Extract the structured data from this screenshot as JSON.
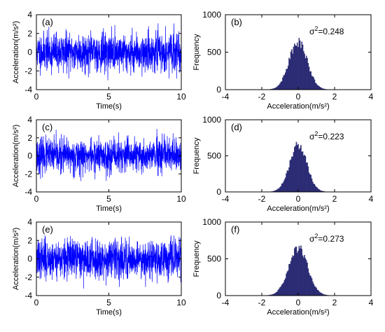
{
  "figure": {
    "background": "#ffffff",
    "signal_color": "#0000ff",
    "histogram_color": "#2b2b7a"
  },
  "chart_data": [
    {
      "panel": "(a)",
      "type": "line",
      "description_style": "dense random vibration signal",
      "xlabel": "Time(s)",
      "ylabel": "Acceleration(m/s²)",
      "xlim": [
        0,
        10
      ],
      "ylim": [
        -4,
        4
      ],
      "xticks": [
        "0",
        "5",
        "10"
      ],
      "yticks": [
        "-4",
        "-2",
        "0",
        "2",
        "4"
      ],
      "sample_count": 1200,
      "sigma": 0.498,
      "seed": 11
    },
    {
      "panel": "(b)",
      "type": "bar",
      "xlabel": "Acceleration(m/s²)",
      "ylabel": "Frequency",
      "xlim": [
        -4,
        4
      ],
      "ylim": [
        0,
        1000
      ],
      "xticks": [
        "-4",
        "-2",
        "0",
        "2",
        "4"
      ],
      "yticks": [
        "0",
        "500",
        "1000"
      ],
      "annotation_prefix": "σ",
      "annotation_exp": "2",
      "annotation_value": "=0.248",
      "variance": 0.248,
      "peak_frequency": 640,
      "bin_width": 0.05
    },
    {
      "panel": "(c)",
      "type": "line",
      "xlabel": "Time(s)",
      "ylabel": "Acceleration(m/s²)",
      "xlim": [
        0,
        10
      ],
      "ylim": [
        -4,
        4
      ],
      "xticks": [
        "0",
        "5",
        "10"
      ],
      "yticks": [
        "-4",
        "-2",
        "0",
        "2",
        "4"
      ],
      "sample_count": 1200,
      "sigma": 0.472,
      "seed": 23
    },
    {
      "panel": "(d)",
      "type": "bar",
      "xlabel": "Acceleration(m/s²)",
      "ylabel": "Frequency",
      "xlim": [
        -4,
        4
      ],
      "ylim": [
        0,
        1000
      ],
      "xticks": [
        "-4",
        "-2",
        "0",
        "2",
        "4"
      ],
      "yticks": [
        "0",
        "500",
        "1000"
      ],
      "annotation_prefix": "σ",
      "annotation_exp": "2",
      "annotation_value": "=0.223",
      "variance": 0.223,
      "peak_frequency": 650,
      "bin_width": 0.05
    },
    {
      "panel": "(e)",
      "type": "line",
      "xlabel": "Time(s)",
      "ylabel": "Acceleration(m/s²)",
      "xlim": [
        0,
        10
      ],
      "ylim": [
        -4,
        4
      ],
      "xticks": [
        "0",
        "5",
        "10"
      ],
      "yticks": [
        "-4",
        "-2",
        "0",
        "2",
        "4"
      ],
      "sample_count": 1200,
      "sigma": 0.522,
      "seed": 37
    },
    {
      "panel": "(f)",
      "type": "bar",
      "xlabel": "Acceleration(m/s²)",
      "ylabel": "Frequency",
      "xlim": [
        -4,
        4
      ],
      "ylim": [
        0,
        1000
      ],
      "xticks": [
        "-4",
        "-2",
        "0",
        "2",
        "4"
      ],
      "yticks": [
        "0",
        "500",
        "1000"
      ],
      "annotation_prefix": "σ",
      "annotation_exp": "2",
      "annotation_value": "=0.273",
      "variance": 0.273,
      "peak_frequency": 650,
      "bin_width": 0.05
    }
  ]
}
